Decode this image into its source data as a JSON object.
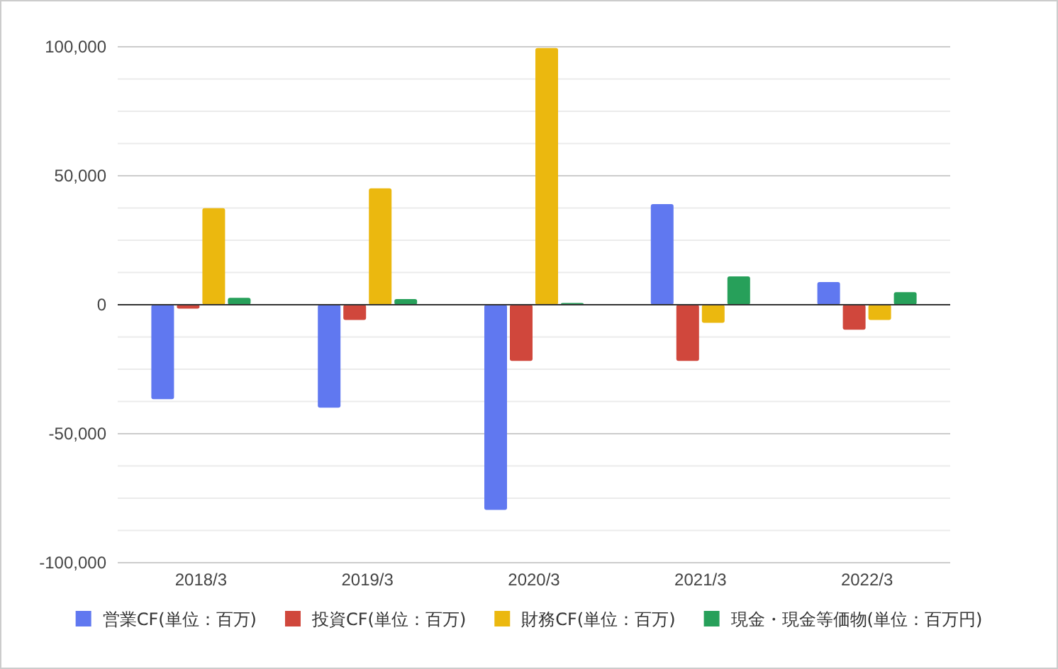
{
  "chart_data": {
    "type": "bar",
    "categories": [
      "2018/3",
      "2019/3",
      "2020/3",
      "2021/3",
      "2022/3"
    ],
    "series": [
      {
        "name": "営業CF(単位：百万)",
        "color": "#6078f0",
        "values": [
          -36600,
          -39900,
          -79500,
          39000,
          8800
        ]
      },
      {
        "name": "投資CF(単位：百万)",
        "color": "#d0473c",
        "values": [
          -1500,
          -5900,
          -21800,
          -21800,
          -9700
        ]
      },
      {
        "name": "財務CF(単位：百万)",
        "color": "#ebb80f",
        "values": [
          37400,
          45100,
          99500,
          -7000,
          -5900
        ]
      },
      {
        "name": "現金・現金等価物(単位：百万円)",
        "color": "#27a05a",
        "values": [
          2700,
          2200,
          700,
          11000,
          4900
        ]
      }
    ],
    "ylim": [
      -100000,
      100000
    ],
    "yticks": [
      {
        "value": -100000,
        "label": "-100,000"
      },
      {
        "value": -87500,
        "label": null
      },
      {
        "value": -75000,
        "label": null
      },
      {
        "value": -62500,
        "label": null
      },
      {
        "value": -50000,
        "label": "-50,000"
      },
      {
        "value": -37500,
        "label": null
      },
      {
        "value": -25000,
        "label": null
      },
      {
        "value": -12500,
        "label": null
      },
      0,
      {
        "value": 12500,
        "label": null
      },
      {
        "value": 25000,
        "label": null
      },
      {
        "value": 37500,
        "label": null
      },
      {
        "value": 50000,
        "label": "50,000"
      },
      {
        "value": 62500,
        "label": null
      },
      {
        "value": 75000,
        "label": null
      },
      {
        "value": 87500,
        "label": null
      },
      {
        "value": 100000,
        "label": "100,000"
      }
    ],
    "grid": "y",
    "legend": "bottom"
  }
}
